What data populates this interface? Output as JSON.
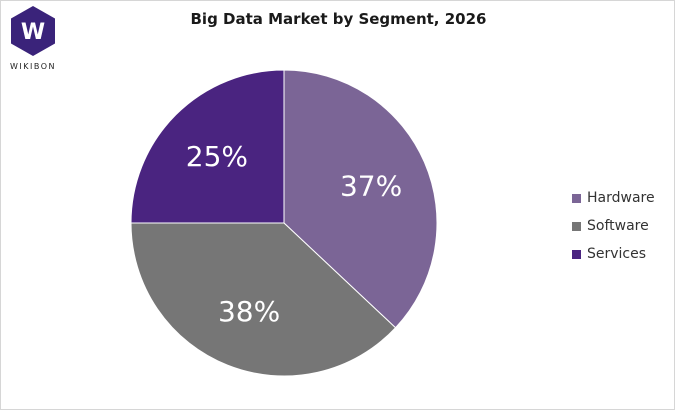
{
  "logo": {
    "letter": "W",
    "wordmark": "WIKIBON",
    "color": "#3a237a"
  },
  "chart_data": {
    "type": "pie",
    "title": "Big Data Market by Segment, 2026",
    "series": [
      {
        "name": "Hardware",
        "value": 37,
        "label": "37%",
        "color": "#7b6596"
      },
      {
        "name": "Software",
        "value": 38,
        "label": "38%",
        "color": "#767676"
      },
      {
        "name": "Services",
        "value": 25,
        "label": "25%",
        "color": "#4a2480"
      }
    ],
    "start_angle_deg": 0,
    "direction": "clockwise",
    "legend_position": "right"
  }
}
